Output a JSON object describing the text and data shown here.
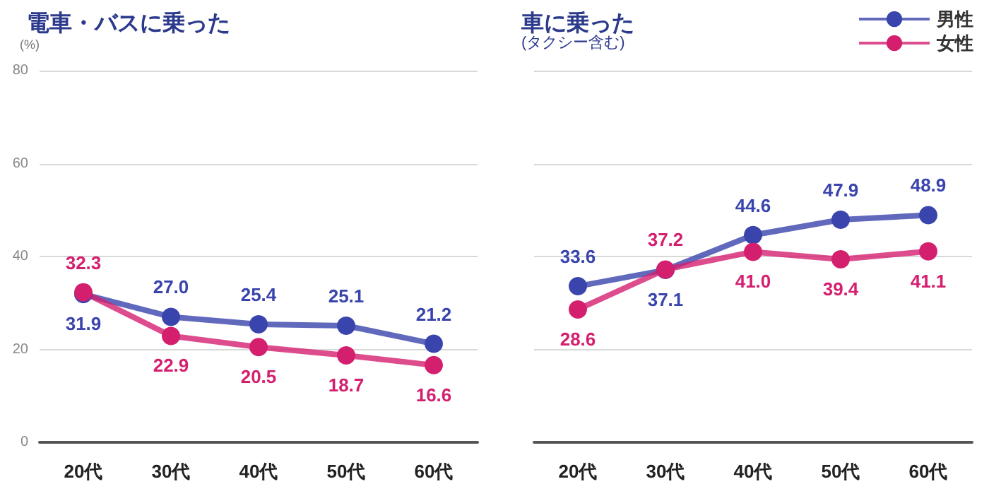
{
  "chart_data": [
    {
      "type": "line",
      "title": "電車・バスに乗った",
      "ylabel": "(%)",
      "categories": [
        "20代",
        "30代",
        "40代",
        "50代",
        "60代"
      ],
      "series": [
        {
          "color": "#3a44ad",
          "values": [
            31.9,
            27.0,
            25.4,
            25.1,
            21.2
          ],
          "value_labels": [
            "31.9",
            "27.0",
            "25.4",
            "25.1",
            "21.2"
          ]
        },
        {
          "color": "#d41f6f",
          "values": [
            32.3,
            22.9,
            20.5,
            18.7,
            16.6
          ],
          "value_labels": [
            "32.3",
            "22.9",
            "20.5",
            "18.7",
            "16.6"
          ]
        }
      ],
      "ylim": [
        0,
        80
      ],
      "yticks": [
        0,
        20,
        40,
        60,
        80
      ],
      "grid": "y",
      "marker": "circle"
    },
    {
      "type": "line",
      "title": "車に乗った",
      "subtitle": "(タクシー含む)",
      "categories": [
        "20代",
        "30代",
        "40代",
        "50代",
        "60代"
      ],
      "series": [
        {
          "name": "男性",
          "color": "#3a44ad",
          "values": [
            33.6,
            37.1,
            44.6,
            47.9,
            48.9
          ],
          "value_labels": [
            "33.6",
            "37.1",
            "44.6",
            "47.9",
            "48.9"
          ]
        },
        {
          "name": "女性",
          "color": "#d41f6f",
          "values": [
            28.6,
            37.2,
            41.0,
            39.4,
            41.1
          ],
          "value_labels": [
            "28.6",
            "37.2",
            "41.0",
            "39.4",
            "41.1"
          ]
        }
      ],
      "ylim": [
        0,
        80
      ],
      "yticks": [
        0,
        20,
        40,
        60,
        80
      ],
      "grid": "y",
      "marker": "circle",
      "legend": "top right",
      "tick_labels": "x"
    }
  ]
}
